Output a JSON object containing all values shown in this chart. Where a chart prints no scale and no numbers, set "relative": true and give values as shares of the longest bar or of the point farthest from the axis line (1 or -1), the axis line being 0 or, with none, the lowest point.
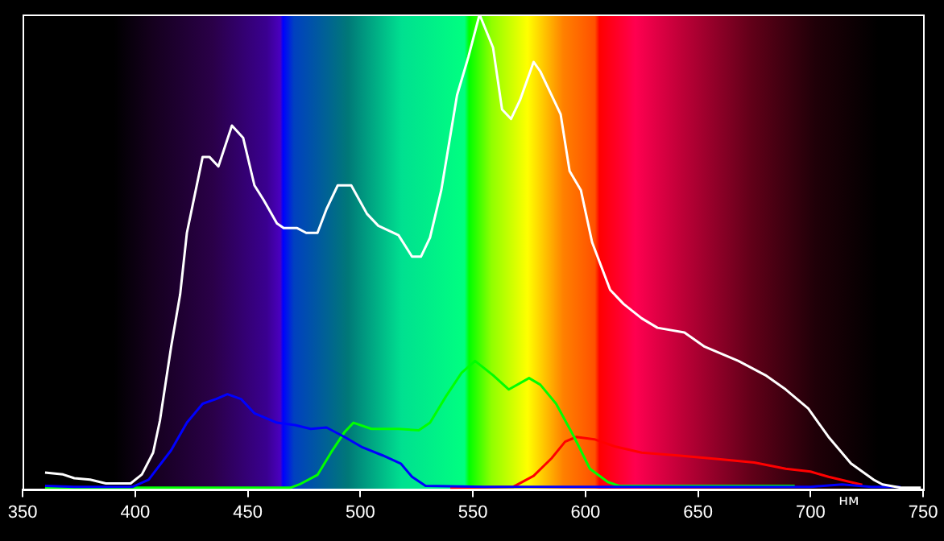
{
  "chart_data": {
    "type": "line",
    "xlabel": "нм",
    "relative": true,
    "xlim": [
      350,
      750
    ],
    "xticks": [
      350,
      400,
      450,
      500,
      550,
      600,
      650,
      700,
      750
    ],
    "marker": "none",
    "line_style": "solid",
    "legend": false,
    "series": [
      {
        "color": "#ffffff",
        "x": [
          360,
          368,
          373,
          380,
          387,
          398,
          403,
          408,
          411,
          416,
          420,
          423,
          430,
          433,
          437,
          443,
          448,
          453,
          457,
          463,
          466,
          472,
          476,
          481,
          485,
          490,
          496,
          503,
          508,
          517,
          523,
          527,
          531,
          536,
          543,
          548,
          553,
          559,
          563,
          567,
          571,
          577,
          580,
          584,
          589,
          593,
          598,
          603,
          611,
          617,
          625,
          632,
          644,
          653,
          668,
          680,
          689,
          699,
          708,
          718,
          728,
          732,
          740,
          749
        ],
        "values": [
          0.035,
          0.031,
          0.023,
          0.02,
          0.012,
          0.012,
          0.031,
          0.077,
          0.144,
          0.3,
          0.41,
          0.54,
          0.7,
          0.7,
          0.68,
          0.766,
          0.74,
          0.64,
          0.61,
          0.56,
          0.55,
          0.55,
          0.54,
          0.54,
          0.59,
          0.64,
          0.64,
          0.58,
          0.555,
          0.535,
          0.49,
          0.49,
          0.53,
          0.63,
          0.83,
          0.91,
          1,
          0.93,
          0.8,
          0.78,
          0.82,
          0.9,
          0.88,
          0.84,
          0.79,
          0.67,
          0.63,
          0.52,
          0.42,
          0.39,
          0.36,
          0.34,
          0.33,
          0.3,
          0.27,
          0.24,
          0.21,
          0.17,
          0.11,
          0.054,
          0.02,
          0.01,
          0.003,
          0.003
        ]
      },
      {
        "color": "#0000ff",
        "x": [
          360,
          373,
          399,
          406,
          416,
          423,
          430,
          436,
          441,
          447,
          453,
          463,
          471,
          478,
          485,
          493,
          501,
          510,
          518,
          523,
          529,
          555,
          700,
          714,
          727,
          740
        ],
        "values": [
          0.007,
          0.005,
          0.005,
          0.02,
          0.082,
          0.14,
          0.18,
          0.19,
          0.2,
          0.19,
          0.16,
          0.14,
          0.135,
          0.127,
          0.13,
          0.11,
          0.088,
          0.071,
          0.054,
          0.026,
          0.007,
          0.005,
          0.005,
          0.01,
          0.005,
          0.005
        ]
      },
      {
        "color": "#00ff00",
        "x": [
          360,
          469,
          473,
          481,
          487,
          493,
          497,
          505,
          517,
          526,
          531,
          538,
          545,
          551,
          559,
          566,
          575,
          580,
          587,
          595,
          602,
          610,
          615,
          693
        ],
        "values": [
          0.003,
          0.003,
          0.01,
          0.03,
          0.077,
          0.12,
          0.14,
          0.127,
          0.127,
          0.124,
          0.14,
          0.195,
          0.245,
          0.27,
          0.24,
          0.21,
          0.234,
          0.22,
          0.18,
          0.11,
          0.043,
          0.015,
          0.007,
          0.007
        ]
      },
      {
        "color": "#ff0000",
        "x": [
          540,
          568,
          577,
          585,
          591,
          596,
          604,
          613,
          625,
          641,
          660,
          675,
          689,
          700,
          708,
          723
        ],
        "values": [
          0.003,
          0.005,
          0.028,
          0.065,
          0.1,
          0.11,
          0.105,
          0.09,
          0.077,
          0.071,
          0.063,
          0.056,
          0.043,
          0.037,
          0.026,
          0.009
        ]
      }
    ]
  }
}
